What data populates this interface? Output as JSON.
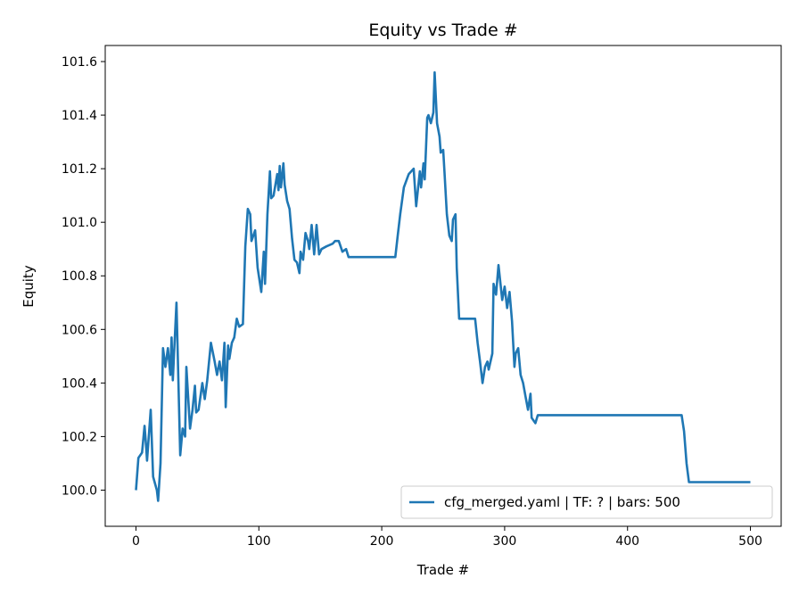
{
  "chart_data": {
    "type": "line",
    "title": "Equity vs Trade #",
    "xlabel": "Trade #",
    "ylabel": "Equity",
    "xlim": [
      -25,
      525
    ],
    "ylim": [
      99.865,
      101.66
    ],
    "xticks": [
      0,
      100,
      200,
      300,
      400,
      500
    ],
    "xtick_labels": [
      "0",
      "100",
      "200",
      "300",
      "400",
      "500"
    ],
    "yticks": [
      100.0,
      100.2,
      100.4,
      100.6,
      100.8,
      101.0,
      101.2,
      101.4,
      101.6
    ],
    "ytick_labels": [
      "100.0",
      "100.2",
      "100.4",
      "100.6",
      "100.8",
      "101.0",
      "101.2",
      "101.4",
      "101.6"
    ],
    "grid": false,
    "legend": {
      "placement": "lower-right",
      "entries": [
        "cfg_merged.yaml | TF: ? | bars: 500"
      ]
    },
    "series": [
      {
        "name": "cfg_merged.yaml | TF: ? | bars: 500",
        "color": "#1f77b4",
        "x": [
          0,
          2,
          5,
          7,
          8,
          9,
          12,
          14,
          17,
          18,
          20,
          22,
          24,
          26,
          28,
          29,
          30,
          33,
          36,
          38,
          40,
          41,
          44,
          46,
          48,
          49,
          51,
          54,
          56,
          58,
          61,
          64,
          66,
          68,
          70,
          72,
          73,
          75,
          76,
          78,
          80,
          82,
          84,
          87,
          89,
          91,
          93,
          94,
          97,
          99,
          102,
          104,
          105,
          107,
          109,
          110,
          112,
          115,
          116,
          117,
          118,
          120,
          121,
          123,
          125,
          127,
          129,
          131,
          133,
          134,
          136,
          138,
          140,
          141,
          143,
          145,
          147,
          149,
          151,
          155,
          160,
          162,
          165,
          168,
          171,
          173,
          211,
          213,
          215,
          218,
          222,
          226,
          228,
          231,
          232,
          234,
          235,
          237,
          238,
          240,
          242,
          243,
          245,
          247,
          248,
          250,
          251,
          253,
          255,
          257,
          258,
          260,
          261,
          263,
          276,
          278,
          280,
          282,
          284,
          286,
          287,
          290,
          291,
          293,
          295,
          298,
          300,
          302,
          304,
          306,
          308,
          309,
          311,
          313,
          315,
          317,
          319,
          321,
          322,
          325,
          327,
          444,
          446,
          447,
          448,
          450,
          500
        ],
        "y": [
          100.0,
          100.12,
          100.14,
          100.24,
          100.18,
          100.11,
          100.3,
          100.05,
          100.0,
          99.96,
          100.1,
          100.53,
          100.46,
          100.53,
          100.43,
          100.57,
          100.41,
          100.7,
          100.13,
          100.23,
          100.2,
          100.46,
          100.23,
          100.3,
          100.39,
          100.29,
          100.3,
          100.4,
          100.34,
          100.41,
          100.55,
          100.48,
          100.43,
          100.48,
          100.41,
          100.55,
          100.31,
          100.54,
          100.49,
          100.55,
          100.57,
          100.64,
          100.61,
          100.62,
          100.91,
          101.05,
          101.03,
          100.93,
          100.97,
          100.83,
          100.74,
          100.89,
          100.77,
          101.03,
          101.19,
          101.09,
          101.1,
          101.18,
          101.12,
          101.21,
          101.13,
          101.22,
          101.14,
          101.08,
          101.05,
          100.94,
          100.86,
          100.85,
          100.81,
          100.89,
          100.86,
          100.96,
          100.93,
          100.9,
          100.99,
          100.88,
          100.99,
          100.88,
          100.9,
          100.91,
          100.92,
          100.93,
          100.93,
          100.89,
          100.9,
          100.87,
          100.87,
          100.95,
          101.03,
          101.13,
          101.18,
          101.2,
          101.06,
          101.19,
          101.13,
          101.22,
          101.16,
          101.39,
          101.4,
          101.37,
          101.41,
          101.56,
          101.37,
          101.32,
          101.26,
          101.27,
          101.19,
          101.03,
          100.95,
          100.93,
          101.01,
          101.03,
          100.83,
          100.64,
          100.64,
          100.55,
          100.48,
          100.4,
          100.46,
          100.48,
          100.45,
          100.51,
          100.77,
          100.73,
          100.84,
          100.71,
          100.76,
          100.68,
          100.74,
          100.63,
          100.46,
          100.51,
          100.53,
          100.43,
          100.4,
          100.35,
          100.3,
          100.36,
          100.27,
          100.25,
          100.28,
          100.28,
          100.22,
          100.16,
          100.1,
          100.03,
          100.03
        ]
      }
    ]
  }
}
